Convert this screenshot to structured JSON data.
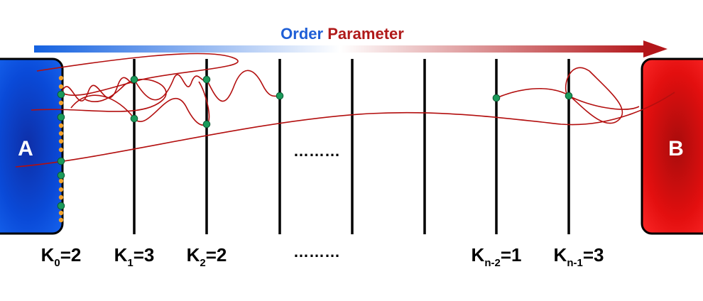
{
  "title": {
    "word1": "Order",
    "word2": "Parameter",
    "word1_color": "#1f5fd6",
    "word2_color": "#b01a1a"
  },
  "states": {
    "a": {
      "label": "A",
      "color": "#0a46d8"
    },
    "b": {
      "label": "B",
      "color": "#e00d0d"
    }
  },
  "ellipsis": "………",
  "interfaces": [
    {
      "base": "K",
      "sub": "0",
      "eq": "=2"
    },
    {
      "base": "K",
      "sub": "1",
      "eq": "=3"
    },
    {
      "base": "K",
      "sub": "2",
      "eq": "=2"
    },
    {
      "base": "K",
      "sub": "n-2",
      "eq": "=1"
    },
    {
      "base": "K",
      "sub": "n-1",
      "eq": "=3"
    }
  ],
  "colors": {
    "trajectory": "#b30f0f",
    "crossing_point": "#1a9a5a",
    "starting_point": "#f2a22a",
    "interface_line": "#000000"
  }
}
